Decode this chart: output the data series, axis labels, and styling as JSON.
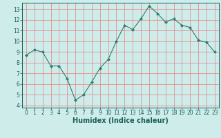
{
  "x": [
    0,
    1,
    2,
    3,
    4,
    5,
    6,
    7,
    8,
    9,
    10,
    11,
    12,
    13,
    14,
    15,
    16,
    17,
    18,
    19,
    20,
    21,
    22,
    23
  ],
  "y": [
    8.7,
    9.2,
    9.0,
    7.7,
    7.7,
    6.5,
    4.5,
    5.0,
    6.2,
    7.5,
    8.3,
    10.0,
    11.5,
    11.1,
    12.1,
    13.3,
    12.6,
    11.8,
    12.1,
    11.5,
    11.3,
    10.1,
    9.9,
    9.0
  ],
  "line_color": "#2e7d6e",
  "marker": "D",
  "marker_size": 2.0,
  "bg_color": "#cdecea",
  "grid_color": "#e88080",
  "xlabel": "Humidex (Indice chaleur)",
  "xlim": [
    -0.5,
    23.5
  ],
  "ylim": [
    3.8,
    13.6
  ],
  "yticks": [
    4,
    5,
    6,
    7,
    8,
    9,
    10,
    11,
    12,
    13
  ],
  "xticks": [
    0,
    1,
    2,
    3,
    4,
    5,
    6,
    7,
    8,
    9,
    10,
    11,
    12,
    13,
    14,
    15,
    16,
    17,
    18,
    19,
    20,
    21,
    22,
    23
  ],
  "font_color": "#1a5f57",
  "tick_fontsize": 5.5,
  "xlabel_fontsize": 7.0
}
